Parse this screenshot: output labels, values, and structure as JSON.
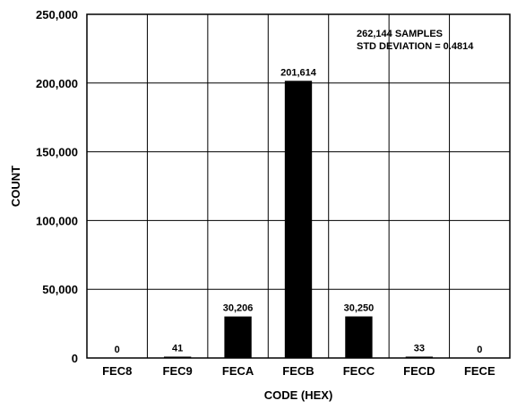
{
  "chart_data": {
    "type": "bar",
    "categories": [
      "FEC8",
      "FEC9",
      "FECA",
      "FECB",
      "FECC",
      "FECD",
      "FECE"
    ],
    "values": [
      0,
      41,
      30206,
      201614,
      30250,
      33,
      0
    ],
    "data_labels": [
      "0",
      "41",
      "30,206",
      "201,614",
      "30,250",
      "33",
      "0"
    ],
    "xlabel": "CODE (HEX)",
    "ylabel": "COUNT",
    "ylim": [
      0,
      250000
    ],
    "yticks": [
      0,
      50000,
      100000,
      150000,
      200000,
      250000
    ],
    "ytick_labels": [
      "0",
      "50,000",
      "100,000",
      "150,000",
      "200,000",
      "250,000"
    ],
    "grid": true,
    "annotations": [
      "262,144 SAMPLES",
      "STD DEVIATION = 0.4814"
    ],
    "bar_color": "#000000"
  }
}
